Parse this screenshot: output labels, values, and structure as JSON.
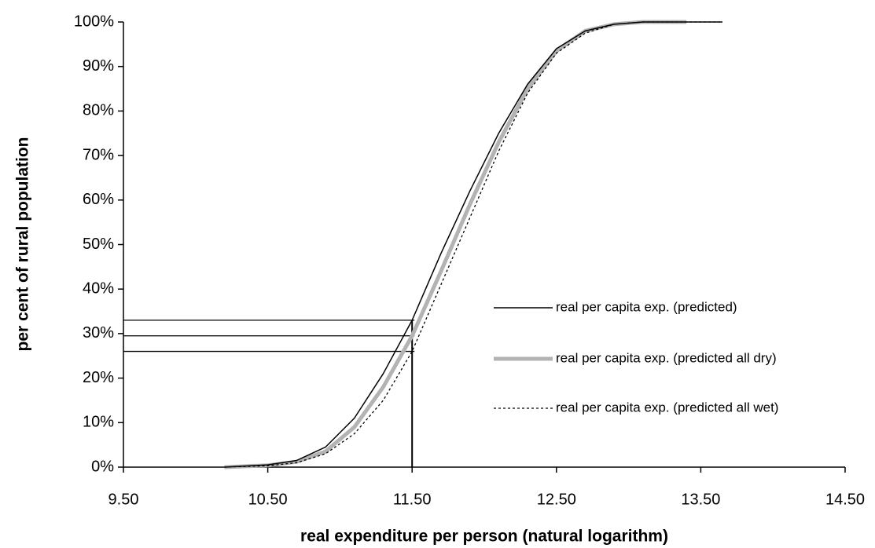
{
  "chart_data": {
    "type": "line",
    "xlabel": "real expenditure per person (natural logarithm)",
    "ylabel": "per cent of rural population",
    "x": [
      10.2,
      10.5,
      10.7,
      10.9,
      11.1,
      11.3,
      11.5,
      11.7,
      11.9,
      12.1,
      12.3,
      12.5,
      12.7,
      12.9,
      13.1,
      13.4,
      13.65
    ],
    "series": [
      {
        "name": "real per capita exp. (predicted)",
        "color": "#000000",
        "style": "solid",
        "values": [
          0,
          0.5,
          1.5,
          4.5,
          11,
          21,
          33,
          48,
          62,
          75,
          86,
          94,
          98,
          99.5,
          100,
          100,
          100
        ]
      },
      {
        "name": "real per capita exp. (predicted all dry)",
        "color": "#b3b3b3",
        "style": "thick",
        "values": [
          0,
          0.4,
          1.2,
          3.5,
          9,
          18,
          29.5,
          44,
          59,
          73,
          85,
          93.5,
          98,
          99.5,
          100,
          100,
          null
        ]
      },
      {
        "name": "real per capita exp. (predicted all wet)",
        "color": "#000000",
        "style": "dashed",
        "values": [
          0,
          0.3,
          1,
          3,
          7.5,
          15,
          26,
          41,
          56,
          71,
          84,
          93,
          97.5,
          99.5,
          100,
          100,
          100
        ]
      }
    ],
    "hlines": [
      33,
      29.5,
      26
    ],
    "vline": 11.5,
    "xlim": [
      9.5,
      14.5
    ],
    "xticks": [
      {
        "value": 9.5,
        "label": "9.50"
      },
      {
        "value": 10.5,
        "label": "10.50"
      },
      {
        "value": 11.5,
        "label": "11.50"
      },
      {
        "value": 12.5,
        "label": "12.50"
      },
      {
        "value": 13.5,
        "label": "13.50"
      },
      {
        "value": 14.5,
        "label": "14.50"
      }
    ],
    "ylim": [
      0,
      100
    ],
    "yticks": [
      {
        "value": 0,
        "label": "0%"
      },
      {
        "value": 10,
        "label": "10%"
      },
      {
        "value": 20,
        "label": "20%"
      },
      {
        "value": 30,
        "label": "30%"
      },
      {
        "value": 40,
        "label": "40%"
      },
      {
        "value": 50,
        "label": "50%"
      },
      {
        "value": 60,
        "label": "60%"
      },
      {
        "value": 70,
        "label": "70%"
      },
      {
        "value": 80,
        "label": "80%"
      },
      {
        "value": 90,
        "label": "90%"
      },
      {
        "value": 100,
        "label": "100%"
      }
    ],
    "grid": false
  }
}
